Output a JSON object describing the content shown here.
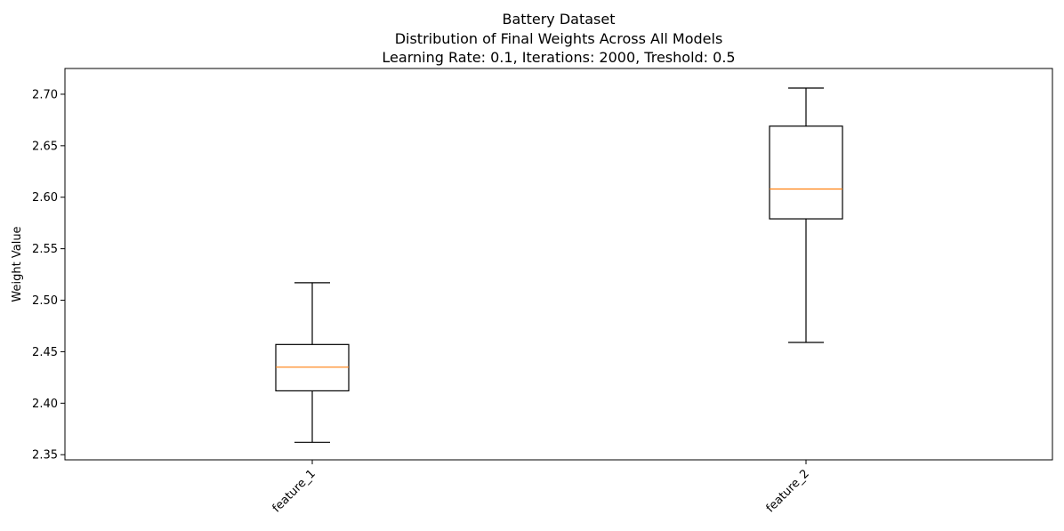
{
  "chart_data": {
    "type": "box",
    "title": "Battery Dataset",
    "subtitle_lines": [
      "Distribution of Final Weights Across All Models",
      "Learning Rate: 0.1, Iterations: 2000, Treshold: 0.5"
    ],
    "xlabel": "",
    "ylabel": "Weight Value",
    "ylim": [
      2.345,
      2.725
    ],
    "yticks": [
      "2.35",
      "2.40",
      "2.45",
      "2.50",
      "2.55",
      "2.60",
      "2.65",
      "2.70"
    ],
    "categories": [
      "feature_1",
      "feature_2"
    ],
    "boxes": [
      {
        "category": "feature_1",
        "whisker_low": 2.362,
        "q1": 2.412,
        "median": 2.435,
        "q3": 2.457,
        "whisker_high": 2.517
      },
      {
        "category": "feature_2",
        "whisker_low": 2.459,
        "q1": 2.579,
        "median": 2.608,
        "q3": 2.669,
        "whisker_high": 2.706
      }
    ],
    "grid": false,
    "legend": "none",
    "colors": {
      "box": "#000000",
      "median": "#ff7f0e"
    }
  }
}
